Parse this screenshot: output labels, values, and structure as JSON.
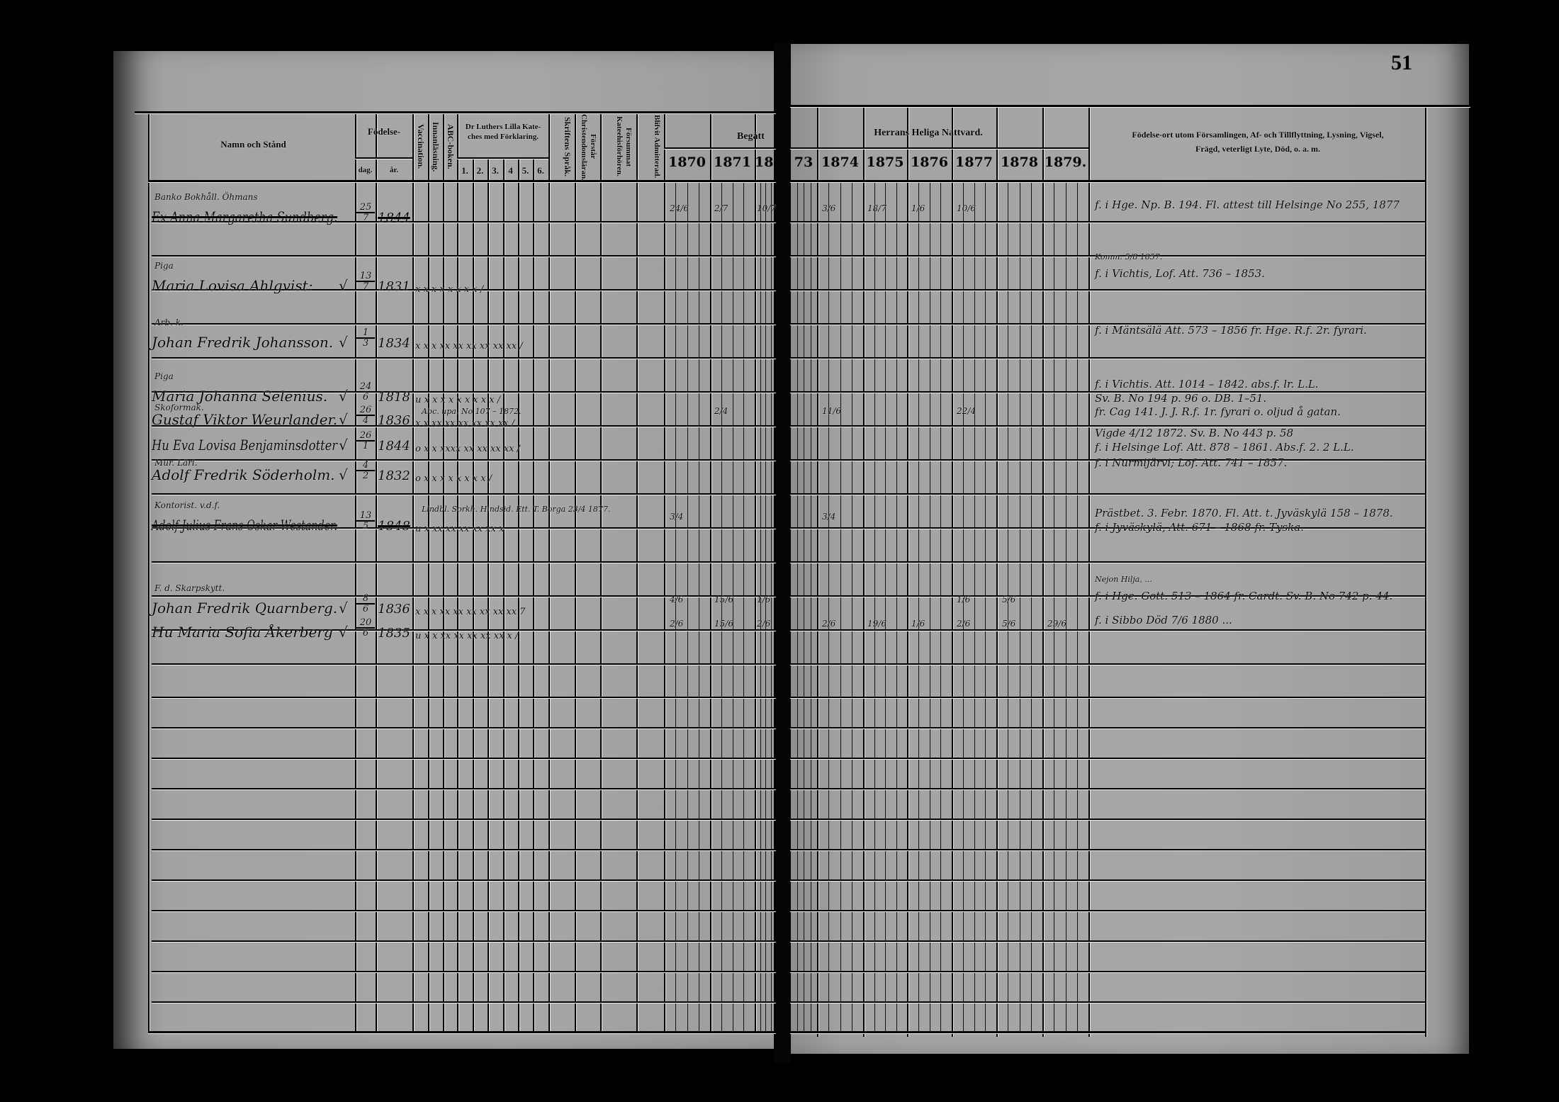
{
  "page_number": "51",
  "left_header": {
    "name_col": "Namn och Stånd",
    "birth": "Födelse-",
    "birth_day": "dag.",
    "birth_year": "år.",
    "vaccination": "Vaccination.",
    "innanlasning": "Innanläsning.",
    "abc": "ABC-boken.",
    "catechism": "Dr Luthers Lilla Katechesmed Förklaring.",
    "catechism_line1": "Dr Luthers Lilla Kate-",
    "catechism_line2": "ches med Förklaring.",
    "catechism_parts": [
      "1.",
      "2.",
      "3.",
      "4",
      "5.",
      "6."
    ],
    "skriftens": "Skriftens Språk.",
    "forstar": "Förstår Christendomsläran.",
    "forsummat": "Försummat Kateehisförhören.",
    "admitterad": "Blifvit Admitterad.",
    "begatt": "Begått"
  },
  "right_header": {
    "communion": "Herrans Heliga Nattvard.",
    "remarks_line1": "Födelse-ort utom Församlingen, Af- och Tillflyttning, Lysning, Vigsel,",
    "remarks_line2": "Frägd, veterligt Lyte, Död, o. a. m."
  },
  "years_left": [
    "1870",
    "1871",
    "187"
  ],
  "years_right": [
    "73",
    "1874",
    "1875",
    "1876",
    "1877",
    "1878",
    "1879."
  ],
  "entries": [
    {
      "title": "Banko Bokhåll. Öhmans",
      "name": "Ex Anna Margaretha Sundberg.",
      "struck": true,
      "day": "25",
      "month": "7",
      "year": "1844",
      "marks": "",
      "communion": {
        "1870": "24/6",
        "1871": "2/7",
        "1872": "10/7",
        "1874": "3/6",
        "1875": "18/7",
        "1876": "1/6",
        "1877": "10/6"
      },
      "remarks": [
        "f. i Hge. Np. B. 194.   Fl. attest till Helsinge No 255, 1877"
      ]
    },
    {
      "title": "Piga",
      "name": "Maria Lovisa Ahlgvist:",
      "check": "√",
      "day": "13",
      "month": "7",
      "year": "1831",
      "marks": "x   x x x x x x x      /",
      "remarks_note": "Komm: 5/8 1857.",
      "remarks": [
        "f. i Vichtis, Lof. Att. 736 – 1853."
      ]
    },
    {
      "title": "Arb. k.",
      "name": "Johan Fredrik Johansson.",
      "check": "√",
      "day": "1",
      "month": "3",
      "year": "1834",
      "marks": "x x x xx xx xx xx xx xx     /",
      "remarks": [
        "f. i Mäntsälä Att. 573 – 1856 fr. Hge. R.f. 2r. fyrari."
      ]
    },
    {
      "title": "Piga",
      "name": "Maria Johanna Selenius.",
      "check": "√",
      "day": "24",
      "month": "6",
      "year": "1818",
      "marks": "u x x x x x x x x x    /",
      "remarks": [
        "f. i Vichtis. Att. 1014 – 1842. abs.f. lr. L.L.",
        "Sv. B. No 194 p. 96 o. DB. 1–51."
      ]
    },
    {
      "title": "Skoformak.",
      "name": "Gustaf Viktor Weurlander.",
      "check": "√",
      "day": "26",
      "month": "4",
      "year": "1836",
      "marks": "x x xx xx xx xx xx xx     /",
      "note": "Abc. upa. No 107 – 1872.",
      "communion": {
        "1871": "2/4",
        "1874": "11/6",
        "1877": "22/4"
      },
      "remarks": [
        "fr. Cag 141. J. J.  R.f. 1r. fyrari o. oljud å gatan."
      ]
    },
    {
      "title": "",
      "name": "Hu Eva Lovisa Benjaminsdotter",
      "check": "√",
      "day": "26",
      "month": "1",
      "year": "1844",
      "marks": "o x x xxxx xx xx xx xx     /",
      "remarks": [
        "Vigde 4/12 1872.  Sv. B. No 443 p. 58",
        "f. i Helsinge Lof. Att. 878 – 1861. Abs.f. 2. 2 L.L."
      ]
    },
    {
      "title": "Mur. Lärl.",
      "name": "Adolf Fredrik Söderholm.",
      "check": "√",
      "day": "4",
      "month": "2",
      "year": "1832",
      "marks": "o x x x x x x x x     /",
      "remarks": [
        "f. i Nurmijärvi; Lof. Att. 741 – 1857."
      ]
    },
    {
      "title": "Kontorist. v.d.f.",
      "name": "Adolf Julius Frans Oskar Westander.",
      "struck": true,
      "day": "13",
      "month": "5",
      "year": "1848",
      "marks": "u x xx xx xx xx xx x",
      "note": "Lindbl. Sorkh. Hindsid. Ett. T. Borga  23/4 1877.",
      "communion": {
        "1870": "3/4",
        "1874": "3/4"
      },
      "remarks": [
        "Prästbet. 3. Febr. 1870. Fl. Att. t. Jyväskylä 158 – 1878.",
        "f. i Jyväskylä, Att. 671 – 1868 fr. Tyska."
      ]
    },
    {
      "title": "F. d. Skarpskytt.",
      "name": "Johan Fredrik Quarnberg.",
      "check": "√",
      "day": "8",
      "month": "6",
      "year": "1836",
      "marks": "x x x xx xx xx xx xx xx     7",
      "communion": {
        "1870": "4/6",
        "1871": "15/6",
        "1872": "1/6",
        "1877": "1/6",
        "1878": "5/6"
      },
      "remarks_note": "Nejon Hilja, ...",
      "remarks": [
        "f. i Hge. Gott. 513 – 1864 fr. Cardt. Sv. B. No 742 p. 44."
      ]
    },
    {
      "title": "",
      "name": "Hu Maria Sofia Åkerberg",
      "check": "√",
      "day": "20",
      "month": "6",
      "year": "1835",
      "marks": "u x x xx xx xx xx xx x     /",
      "communion": {
        "1870": "2/6",
        "1871": "15/6",
        "1872": "2/6",
        "1874": "2/6",
        "1875": "19/6",
        "1876": "1/6",
        "1877": "2/6",
        "1878": "5/6",
        "1879": "29/6"
      },
      "remarks": [
        "f. i Sibbo  Död 7/6 1880 ..."
      ]
    }
  ]
}
